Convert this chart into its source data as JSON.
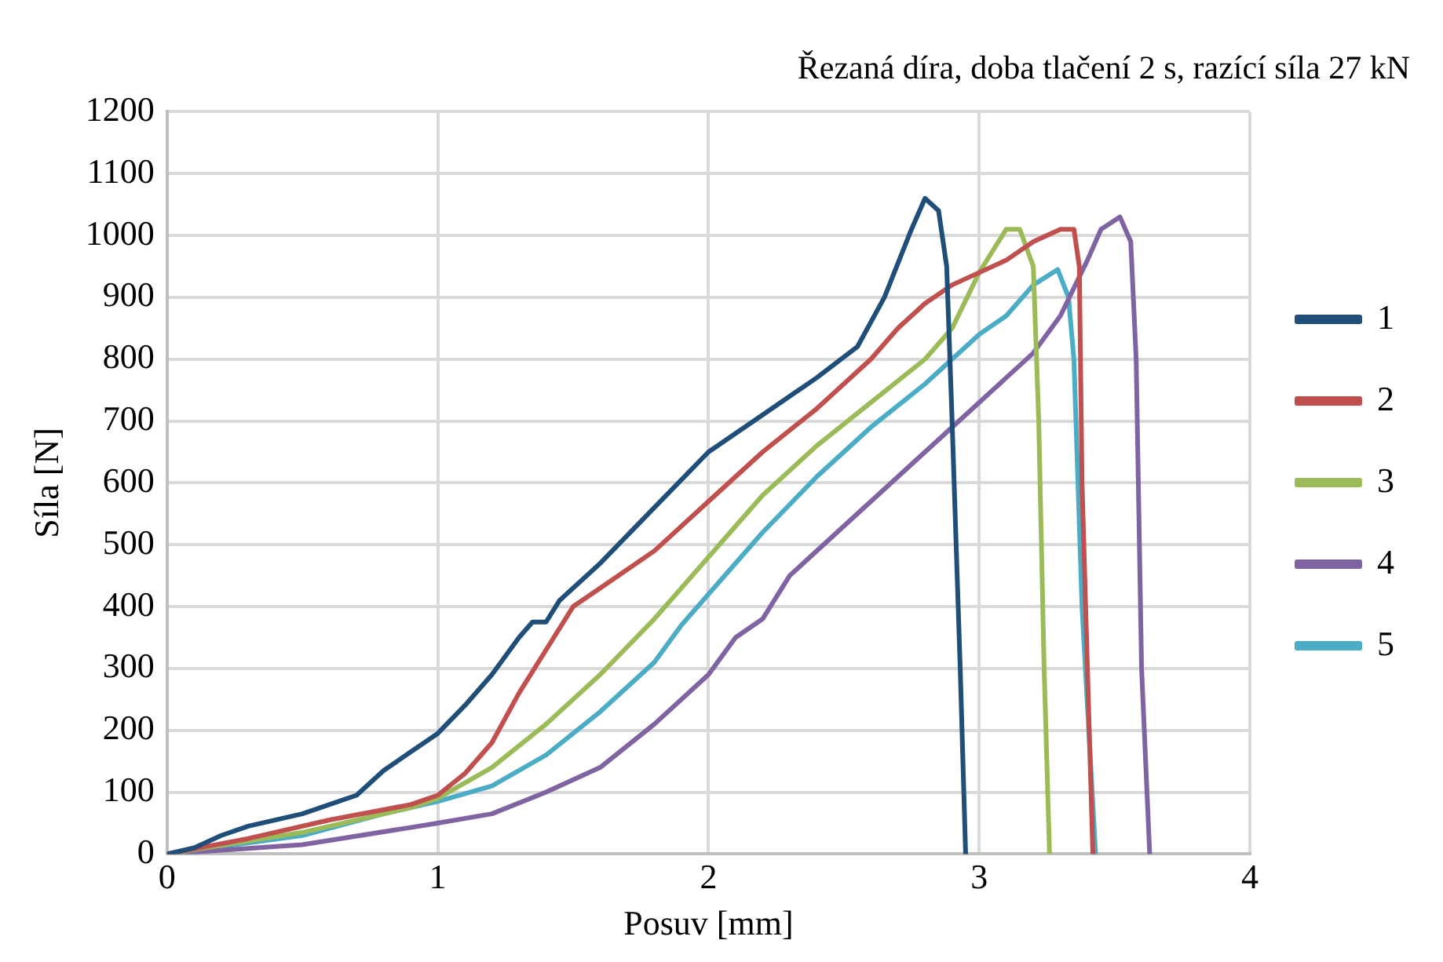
{
  "chart_data": {
    "type": "line",
    "title": "Řezaná díra, doba tlačení 2 s, razící síla 27 kN",
    "xlabel": "Posuv [mm]",
    "ylabel": "Síla [N]",
    "xlim": [
      0,
      4
    ],
    "xticks": [
      0,
      1,
      2,
      3,
      4
    ],
    "ylim": [
      0,
      1200
    ],
    "yticks": [
      0,
      100,
      200,
      300,
      400,
      500,
      600,
      700,
      800,
      900,
      1000,
      1100,
      1200
    ],
    "grid": true,
    "legend": "right",
    "marker": "none",
    "line_style": "solid",
    "series": [
      {
        "name": "1",
        "color": "#1f4e79",
        "x": [
          0,
          0.1,
          0.2,
          0.3,
          0.5,
          0.7,
          0.8,
          0.9,
          1.0,
          1.1,
          1.2,
          1.3,
          1.35,
          1.4,
          1.45,
          1.6,
          1.8,
          2.0,
          2.2,
          2.4,
          2.55,
          2.65,
          2.75,
          2.8,
          2.85,
          2.88,
          2.9,
          2.93,
          2.95
        ],
        "values": [
          0,
          10,
          30,
          45,
          65,
          95,
          135,
          165,
          195,
          240,
          290,
          350,
          375,
          375,
          410,
          470,
          560,
          650,
          710,
          770,
          820,
          900,
          1010,
          1060,
          1040,
          950,
          700,
          300,
          0
        ]
      },
      {
        "name": "2",
        "color": "#c0504d",
        "x": [
          0,
          0.3,
          0.6,
          0.9,
          1.0,
          1.1,
          1.2,
          1.3,
          1.4,
          1.5,
          1.6,
          1.8,
          2.0,
          2.2,
          2.4,
          2.6,
          2.7,
          2.8,
          2.9,
          3.0,
          3.1,
          3.2,
          3.3,
          3.35,
          3.37,
          3.38,
          3.42
        ],
        "values": [
          0,
          25,
          55,
          80,
          95,
          130,
          180,
          260,
          330,
          400,
          430,
          490,
          570,
          650,
          720,
          800,
          850,
          890,
          920,
          940,
          960,
          990,
          1010,
          1010,
          950,
          600,
          0
        ]
      },
      {
        "name": "3",
        "color": "#9bbb59",
        "x": [
          0,
          0.5,
          0.9,
          1.0,
          1.2,
          1.4,
          1.6,
          1.8,
          2.0,
          2.2,
          2.4,
          2.6,
          2.8,
          2.9,
          3.0,
          3.1,
          3.15,
          3.2,
          3.22,
          3.24,
          3.26
        ],
        "values": [
          0,
          35,
          75,
          90,
          140,
          210,
          290,
          380,
          480,
          580,
          660,
          730,
          800,
          850,
          940,
          1010,
          1010,
          950,
          700,
          300,
          0
        ]
      },
      {
        "name": "4",
        "color": "#8064a2",
        "x": [
          0,
          0.5,
          1.0,
          1.2,
          1.4,
          1.6,
          1.8,
          2.0,
          2.1,
          2.2,
          2.3,
          2.5,
          2.7,
          2.9,
          3.0,
          3.1,
          3.2,
          3.3,
          3.4,
          3.45,
          3.52,
          3.56,
          3.58,
          3.6,
          3.63
        ],
        "values": [
          0,
          15,
          50,
          65,
          100,
          140,
          210,
          290,
          350,
          380,
          450,
          530,
          610,
          690,
          730,
          770,
          810,
          870,
          960,
          1010,
          1030,
          990,
          800,
          300,
          0
        ]
      },
      {
        "name": "5",
        "color": "#4bacc6",
        "x": [
          0,
          0.5,
          0.8,
          1.0,
          1.2,
          1.4,
          1.6,
          1.8,
          1.9,
          2.0,
          2.2,
          2.4,
          2.6,
          2.8,
          3.0,
          3.1,
          3.2,
          3.29,
          3.33,
          3.35,
          3.38,
          3.43
        ],
        "values": [
          0,
          30,
          65,
          85,
          110,
          160,
          230,
          310,
          370,
          420,
          520,
          610,
          690,
          760,
          840,
          870,
          920,
          945,
          900,
          800,
          400,
          0
        ]
      }
    ]
  }
}
